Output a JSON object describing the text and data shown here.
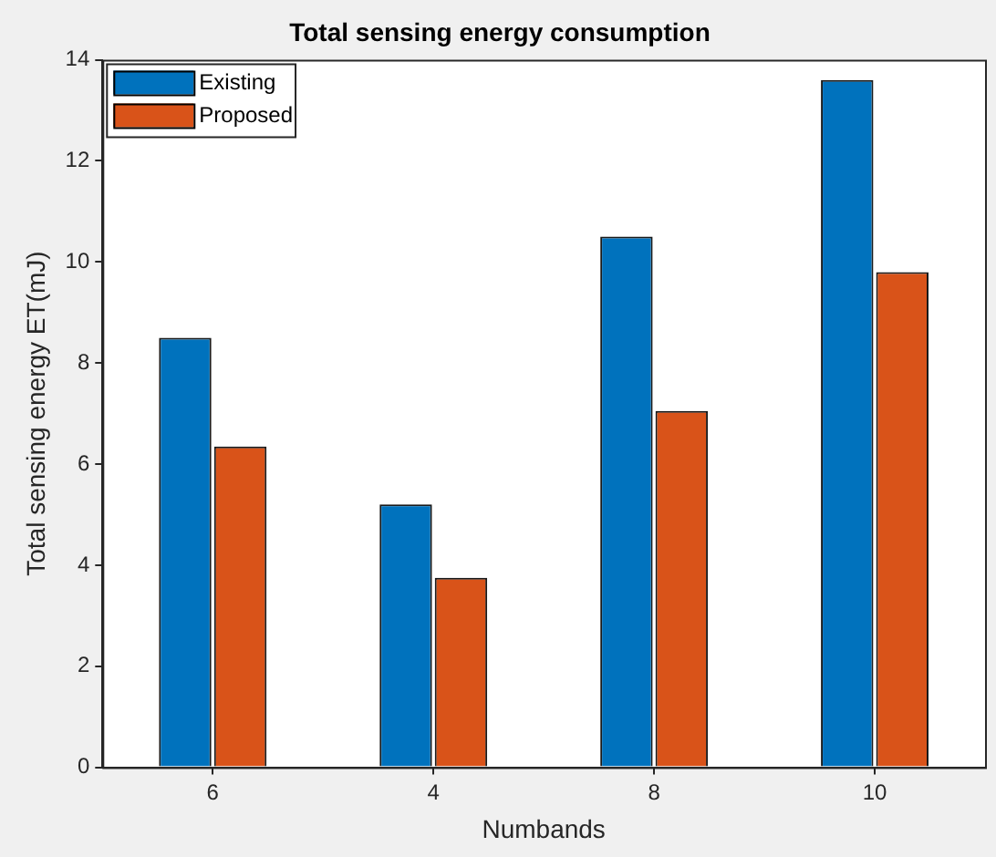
{
  "chart_data": {
    "type": "bar",
    "title": "Total sensing energy consumption",
    "xlabel": "Numbands",
    "ylabel": "Total sensing energy ET(mJ)",
    "categories": [
      "6",
      "4",
      "8",
      "10"
    ],
    "series": [
      {
        "name": "Existing",
        "color": "#0072bd",
        "values": [
          8.5,
          5.2,
          10.5,
          13.6
        ]
      },
      {
        "name": "Proposed",
        "color": "#d95319",
        "values": [
          6.35,
          3.75,
          7.05,
          9.8
        ]
      }
    ],
    "ylim": [
      0,
      14
    ],
    "yticks": [
      0,
      2,
      4,
      6,
      8,
      10,
      12,
      14
    ],
    "grid": false,
    "legend": "top left"
  }
}
